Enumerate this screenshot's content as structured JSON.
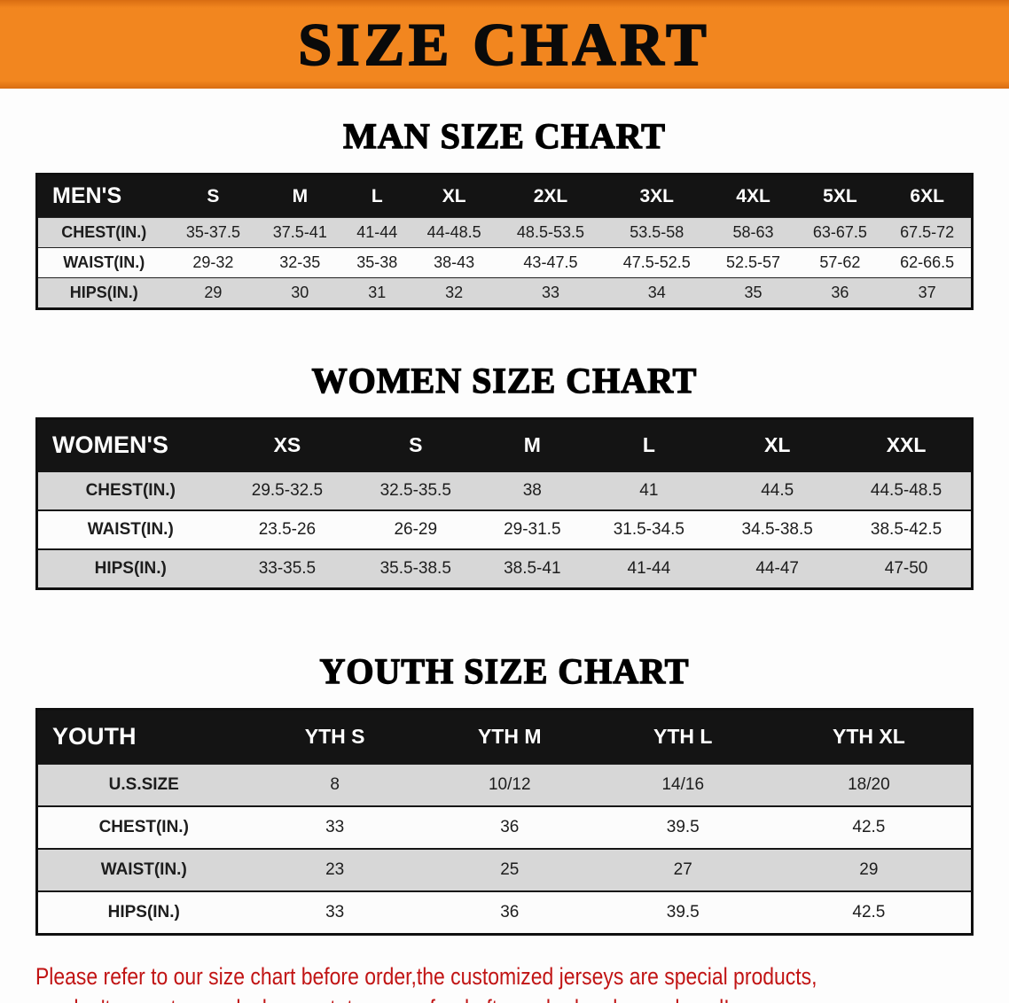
{
  "colors": {
    "banner_bg": "#f2861f",
    "header_bar": "#141414",
    "stripe": "#d7d7d7",
    "footer_text": "#c11414"
  },
  "banner": {
    "title": "SIZE CHART"
  },
  "sections": {
    "men": {
      "heading": "MAN SIZE CHART",
      "table": {
        "header": [
          "MEN'S",
          "S",
          "M",
          "L",
          "XL",
          "2XL",
          "3XL",
          "4XL",
          "5XL",
          "6XL"
        ],
        "rows": [
          {
            "label": "CHEST(IN.)",
            "values": [
              "35-37.5",
              "37.5-41",
              "41-44",
              "44-48.5",
              "48.5-53.5",
              "53.5-58",
              "58-63",
              "63-67.5",
              "67.5-72"
            ]
          },
          {
            "label": "WAIST(IN.)",
            "values": [
              "29-32",
              "32-35",
              "35-38",
              "38-43",
              "43-47.5",
              "47.5-52.5",
              "52.5-57",
              "57-62",
              "62-66.5"
            ]
          },
          {
            "label": "HIPS(IN.)",
            "values": [
              "29",
              "30",
              "31",
              "32",
              "33",
              "34",
              "35",
              "36",
              "37"
            ]
          }
        ]
      }
    },
    "women": {
      "heading": "WOMEN SIZE CHART",
      "table": {
        "header": [
          "WOMEN'S",
          "XS",
          "S",
          "M",
          "L",
          "XL",
          "XXL"
        ],
        "rows": [
          {
            "label": "CHEST(IN.)",
            "values": [
              "29.5-32.5",
              "32.5-35.5",
              "38",
              "41",
              "44.5",
              "44.5-48.5"
            ]
          },
          {
            "label": "WAIST(IN.)",
            "values": [
              "23.5-26",
              "26-29",
              "29-31.5",
              "31.5-34.5",
              "34.5-38.5",
              "38.5-42.5"
            ]
          },
          {
            "label": "HIPS(IN.)",
            "values": [
              "33-35.5",
              "35.5-38.5",
              "38.5-41",
              "41-44",
              "44-47",
              "47-50"
            ]
          }
        ]
      }
    },
    "youth": {
      "heading": "YOUTH SIZE CHART",
      "table": {
        "header": [
          "YOUTH",
          "YTH S",
          "YTH M",
          "YTH L",
          "YTH XL"
        ],
        "rows": [
          {
            "label": "U.S.SIZE",
            "values": [
              "8",
              "10/12",
              "14/16",
              "18/20"
            ]
          },
          {
            "label": "CHEST(IN.)",
            "values": [
              "33",
              "36",
              "39.5",
              "42.5"
            ]
          },
          {
            "label": "WAIST(IN.)",
            "values": [
              "23",
              "25",
              "27",
              "29"
            ]
          },
          {
            "label": "HIPS(IN.)",
            "values": [
              "33",
              "36",
              "39.5",
              "42.5"
            ]
          }
        ]
      }
    }
  },
  "footer": {
    "line1": "Please refer to our size chart before order,the customized jerseys are special products,",
    "line2": "we don't accept cancel, change, teturn or refund after order has been placed!"
  }
}
